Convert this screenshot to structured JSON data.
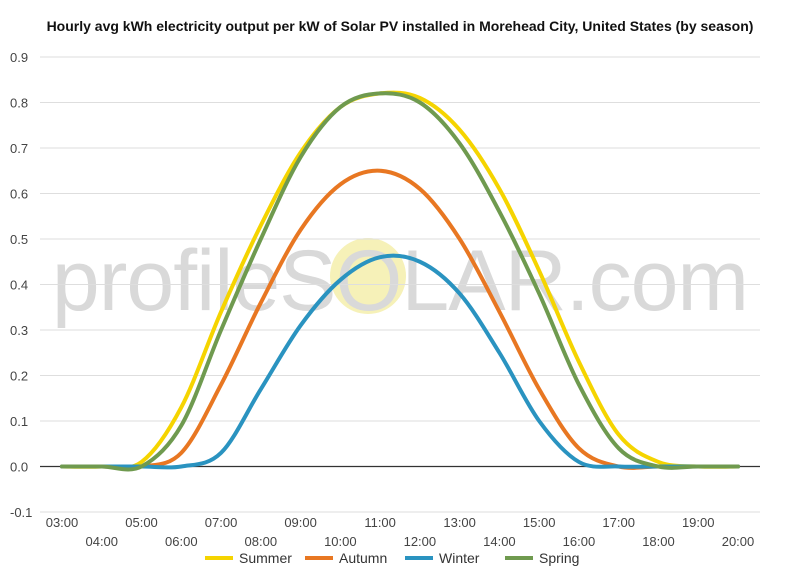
{
  "chart_data": {
    "type": "line",
    "title": "Hourly avg kWh electricity output per kW of Solar PV installed in Morehead City, United States (by season)",
    "watermark": "profileSOLAR.com",
    "xlabel": "",
    "ylabel": "",
    "x": [
      "03:00",
      "04:00",
      "05:00",
      "06:00",
      "07:00",
      "08:00",
      "09:00",
      "10:00",
      "11:00",
      "12:00",
      "13:00",
      "14:00",
      "15:00",
      "16:00",
      "17:00",
      "18:00",
      "19:00",
      "20:00"
    ],
    "ylim": [
      -0.1,
      0.9
    ],
    "yticks": [
      "0.9",
      "0.8",
      "0.7",
      "0.6",
      "0.5",
      "0.4",
      "0.3",
      "0.2",
      "0.1",
      "0.0",
      "-0.1"
    ],
    "grid": true,
    "legend_position": "bottom",
    "series": [
      {
        "name": "Summer",
        "color": "#f5d400",
        "values": [
          0.0,
          0.0,
          0.01,
          0.13,
          0.34,
          0.53,
          0.69,
          0.79,
          0.82,
          0.81,
          0.74,
          0.61,
          0.43,
          0.23,
          0.07,
          0.01,
          0.0,
          0.0
        ]
      },
      {
        "name": "Autumn",
        "color": "#e87722",
        "values": [
          0.0,
          0.0,
          0.0,
          0.03,
          0.18,
          0.36,
          0.52,
          0.62,
          0.65,
          0.61,
          0.5,
          0.34,
          0.17,
          0.04,
          0.0,
          0.0,
          0.0,
          0.0
        ]
      },
      {
        "name": "Winter",
        "color": "#2a93c0",
        "values": [
          0.0,
          0.0,
          0.0,
          0.0,
          0.03,
          0.17,
          0.31,
          0.41,
          0.46,
          0.45,
          0.38,
          0.25,
          0.1,
          0.01,
          0.0,
          0.0,
          0.0,
          0.0
        ]
      },
      {
        "name": "Spring",
        "color": "#6f9a4f",
        "values": [
          0.0,
          0.0,
          0.0,
          0.09,
          0.3,
          0.5,
          0.68,
          0.79,
          0.82,
          0.8,
          0.71,
          0.56,
          0.38,
          0.18,
          0.04,
          0.0,
          0.0,
          0.0
        ]
      }
    ]
  }
}
